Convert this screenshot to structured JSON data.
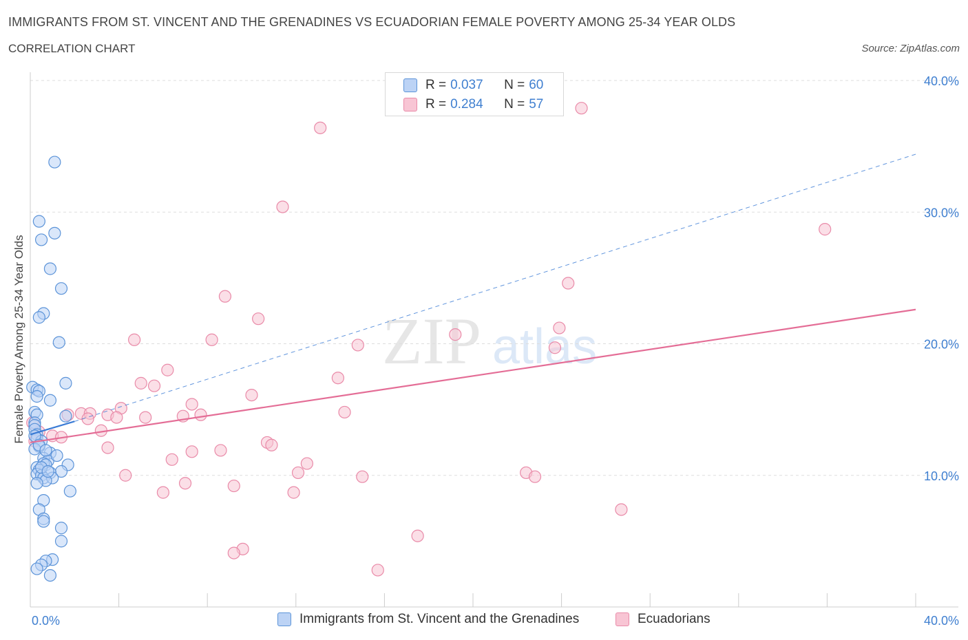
{
  "title": "IMMIGRANTS FROM ST. VINCENT AND THE GRENADINES VS ECUADORIAN FEMALE POVERTY AMONG 25-34 YEAR OLDS",
  "subtitle": "CORRELATION CHART",
  "source": "Source: ZipAtlas.com",
  "watermark": {
    "zip": "ZIP",
    "atlas": "atlas"
  },
  "legend_stats": [
    {
      "r_label": "R =",
      "r_value": "0.037",
      "n_label": "N =",
      "n_value": "60"
    },
    {
      "r_label": "R =",
      "r_value": "0.284",
      "n_label": "N =",
      "n_value": "57"
    }
  ],
  "colors": {
    "blue_fill": "#bcd3f5",
    "blue_stroke": "#5b93d8",
    "blue_line": "#3a7bd5",
    "pink_fill": "#f8c5d4",
    "pink_stroke": "#e98aa8",
    "pink_line": "#e46d96",
    "tick_text": "#3f7fd0",
    "grid": "#dddddd"
  },
  "chart_data": {
    "type": "scatter",
    "title": "IMMIGRANTS FROM ST. VINCENT AND THE GRENADINES VS ECUADORIAN FEMALE POVERTY AMONG 25-34 YEAR OLDS",
    "xlabel": "",
    "ylabel": "Female Poverty Among 25-34 Year Olds",
    "xlim": [
      0,
      40
    ],
    "ylim": [
      0,
      40
    ],
    "x_tick_labels": [
      "0.0%",
      "40.0%"
    ],
    "y_ticks": [
      10,
      20,
      30,
      40
    ],
    "y_tick_labels": [
      "10.0%",
      "20.0%",
      "30.0%",
      "40.0%"
    ],
    "grid": true,
    "legend_placement": "top-center and bottom",
    "series": [
      {
        "name": "Immigrants from St. Vincent and the Grenadines",
        "color": "#5b93d8",
        "trend": {
          "x": [
            0.0,
            2.0
          ],
          "y": [
            13.1,
            14.1
          ],
          "style": "solid"
        },
        "trend_extended": {
          "x": [
            2.0,
            40.0
          ],
          "y": [
            14.1,
            34.4
          ],
          "style": "dashed"
        },
        "points": [
          [
            1.1,
            33.8
          ],
          [
            0.4,
            29.3
          ],
          [
            1.1,
            28.4
          ],
          [
            0.5,
            27.9
          ],
          [
            0.9,
            25.7
          ],
          [
            1.4,
            24.2
          ],
          [
            0.6,
            22.3
          ],
          [
            0.4,
            22.0
          ],
          [
            1.3,
            20.1
          ],
          [
            1.6,
            17.0
          ],
          [
            0.1,
            16.7
          ],
          [
            0.3,
            16.5
          ],
          [
            0.4,
            16.4
          ],
          [
            0.3,
            16.0
          ],
          [
            0.9,
            15.7
          ],
          [
            0.2,
            14.8
          ],
          [
            0.3,
            14.6
          ],
          [
            1.6,
            14.5
          ],
          [
            0.2,
            14.0
          ],
          [
            0.2,
            13.8
          ],
          [
            0.2,
            13.5
          ],
          [
            0.3,
            13.1
          ],
          [
            0.3,
            12.8
          ],
          [
            0.5,
            12.6
          ],
          [
            0.4,
            12.2
          ],
          [
            0.2,
            12.0
          ],
          [
            0.9,
            11.7
          ],
          [
            0.6,
            11.3
          ],
          [
            0.8,
            11.1
          ],
          [
            0.6,
            10.9
          ],
          [
            0.7,
            10.8
          ],
          [
            1.7,
            10.8
          ],
          [
            0.3,
            10.6
          ],
          [
            0.4,
            10.4
          ],
          [
            1.4,
            10.3
          ],
          [
            0.9,
            10.2
          ],
          [
            0.3,
            10.1
          ],
          [
            0.5,
            10.0
          ],
          [
            0.6,
            9.8
          ],
          [
            1.0,
            9.8
          ],
          [
            0.7,
            9.6
          ],
          [
            0.3,
            9.4
          ],
          [
            1.8,
            8.8
          ],
          [
            0.6,
            8.1
          ],
          [
            0.4,
            7.4
          ],
          [
            0.6,
            6.7
          ],
          [
            0.6,
            6.5
          ],
          [
            1.4,
            6.0
          ],
          [
            1.4,
            5.0
          ],
          [
            1.0,
            3.6
          ],
          [
            0.7,
            3.5
          ],
          [
            0.5,
            3.2
          ],
          [
            0.3,
            2.9
          ],
          [
            0.9,
            2.4
          ],
          [
            0.2,
            13.0
          ],
          [
            0.4,
            12.3
          ],
          [
            0.7,
            11.9
          ],
          [
            1.2,
            11.5
          ],
          [
            0.5,
            10.6
          ],
          [
            0.8,
            10.3
          ]
        ]
      },
      {
        "name": "Ecuadorians",
        "color": "#e98aa8",
        "trend": {
          "x": [
            0.0,
            40.0
          ],
          "y": [
            12.5,
            22.6
          ],
          "style": "solid"
        },
        "points": [
          [
            24.9,
            37.9
          ],
          [
            13.1,
            36.4
          ],
          [
            11.4,
            30.4
          ],
          [
            35.9,
            28.7
          ],
          [
            24.3,
            24.6
          ],
          [
            8.8,
            23.6
          ],
          [
            10.3,
            21.9
          ],
          [
            23.9,
            21.2
          ],
          [
            19.2,
            20.7
          ],
          [
            4.7,
            20.3
          ],
          [
            8.2,
            20.3
          ],
          [
            14.8,
            19.9
          ],
          [
            23.7,
            19.7
          ],
          [
            6.2,
            18.0
          ],
          [
            13.9,
            17.4
          ],
          [
            5.0,
            17.0
          ],
          [
            5.6,
            16.8
          ],
          [
            10.0,
            16.1
          ],
          [
            4.1,
            15.1
          ],
          [
            7.3,
            15.4
          ],
          [
            14.2,
            14.8
          ],
          [
            2.3,
            14.7
          ],
          [
            3.5,
            14.6
          ],
          [
            2.7,
            14.7
          ],
          [
            7.7,
            14.6
          ],
          [
            6.9,
            14.5
          ],
          [
            5.2,
            14.4
          ],
          [
            3.9,
            14.4
          ],
          [
            2.6,
            14.3
          ],
          [
            1.7,
            14.6
          ],
          [
            0.1,
            14.0
          ],
          [
            0.4,
            13.3
          ],
          [
            3.2,
            13.4
          ],
          [
            1.0,
            13.0
          ],
          [
            1.4,
            12.9
          ],
          [
            0.2,
            12.6
          ],
          [
            10.7,
            12.5
          ],
          [
            10.9,
            12.3
          ],
          [
            3.5,
            12.1
          ],
          [
            7.3,
            11.8
          ],
          [
            8.6,
            11.9
          ],
          [
            6.4,
            11.2
          ],
          [
            12.5,
            10.9
          ],
          [
            12.1,
            10.2
          ],
          [
            22.4,
            10.2
          ],
          [
            22.8,
            9.9
          ],
          [
            15.0,
            9.9
          ],
          [
            4.3,
            10.0
          ],
          [
            7.0,
            9.4
          ],
          [
            9.2,
            9.2
          ],
          [
            6.0,
            8.7
          ],
          [
            11.9,
            8.7
          ],
          [
            26.7,
            7.4
          ],
          [
            17.5,
            5.4
          ],
          [
            9.6,
            4.4
          ],
          [
            9.2,
            4.1
          ],
          [
            15.7,
            2.8
          ]
        ]
      }
    ]
  }
}
